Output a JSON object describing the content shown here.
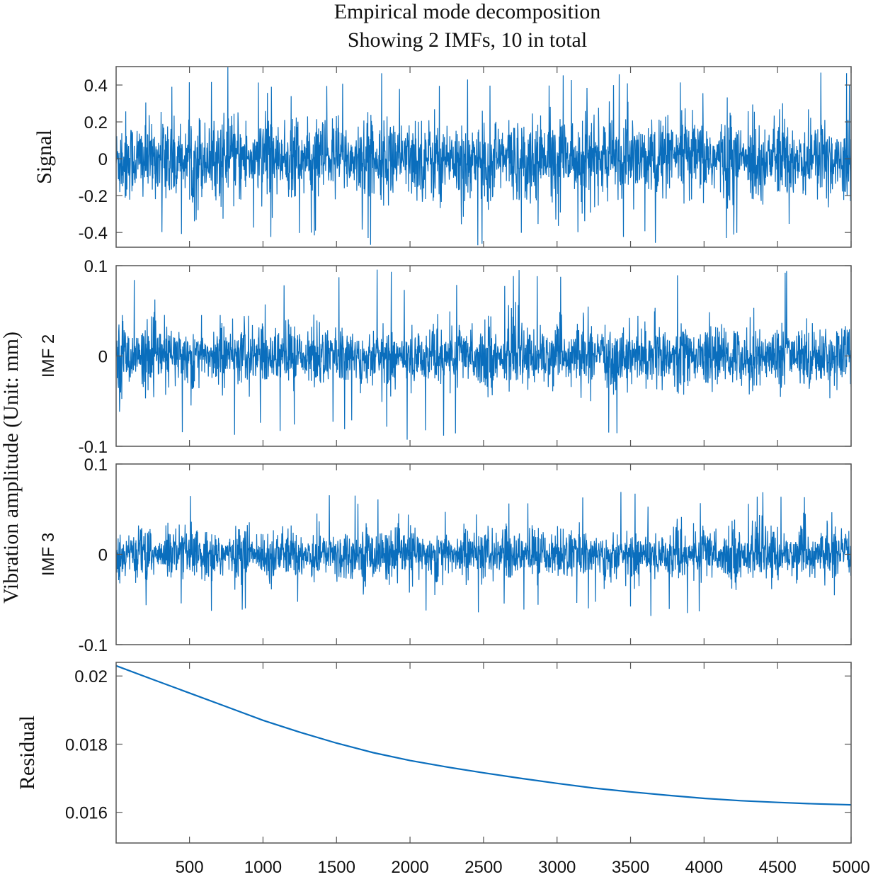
{
  "title": {
    "line1": "Empirical mode decomposition",
    "line2": "Showing 2 IMFs,  10 in total"
  },
  "ylabel": "Vibration amplitude (Unit: mm)",
  "colors": {
    "line": "#0a6ebd",
    "axes": "#555555",
    "text": "#111111"
  },
  "chart_data": [
    {
      "type": "line",
      "name": "Signal",
      "ylabel": "Signal",
      "ylim": [
        -0.48,
        0.5
      ],
      "yticks": [
        -0.4,
        -0.2,
        0,
        0.2,
        0.4
      ],
      "ytick_labels": [
        "-0.4",
        "-0.2",
        "0",
        "0.2",
        "0.4"
      ],
      "xlim": [
        1,
        5000
      ],
      "envelope": {
        "typical_amplitude": 0.2,
        "peak_max": 0.5,
        "peak_min": -0.47
      }
    },
    {
      "type": "line",
      "name": "IMF 2",
      "ylabel": "IMF 2",
      "ylim": [
        -0.1,
        0.1
      ],
      "yticks": [
        -0.1,
        0,
        0.1
      ],
      "ytick_labels": [
        "-0.1",
        "0",
        "0.1"
      ],
      "xlim": [
        1,
        5000
      ],
      "envelope": {
        "typical_amplitude": 0.03,
        "peak_max": 0.097,
        "peak_min": -0.095
      }
    },
    {
      "type": "line",
      "name": "IMF 3",
      "ylabel": "IMF 3",
      "ylim": [
        -0.1,
        0.1
      ],
      "yticks": [
        -0.1,
        0,
        0.1
      ],
      "ytick_labels": [
        "-0.1",
        "0",
        "0.1"
      ],
      "xlim": [
        1,
        5000
      ],
      "envelope": {
        "typical_amplitude": 0.025,
        "peak_max": 0.07,
        "peak_min": -0.07
      }
    },
    {
      "type": "line",
      "name": "Residual",
      "ylabel": "Residual",
      "ylim": [
        0.0151,
        0.0204
      ],
      "yticks": [
        0.016,
        0.018,
        0.02
      ],
      "ytick_labels": [
        "0.016",
        "0.018",
        "0.02"
      ],
      "xlim": [
        1,
        5000
      ],
      "xticks": [
        500,
        1000,
        1500,
        2000,
        2500,
        3000,
        3500,
        4000,
        4500,
        5000
      ],
      "xtick_labels": [
        "500",
        "1000",
        "1500",
        "2000",
        "2500",
        "3000",
        "3500",
        "4000",
        "4500",
        "5000"
      ],
      "x": [
        1,
        250,
        500,
        750,
        1000,
        1250,
        1500,
        1750,
        2000,
        2250,
        2500,
        2750,
        3000,
        3250,
        3500,
        3750,
        4000,
        4250,
        4500,
        4750,
        5000
      ],
      "y": [
        0.0203,
        0.0199,
        0.0195,
        0.0191,
        0.0187,
        0.01835,
        0.01803,
        0.01775,
        0.01752,
        0.01733,
        0.01716,
        0.017,
        0.01685,
        0.01671,
        0.0166,
        0.0165,
        0.01641,
        0.01634,
        0.01629,
        0.01625,
        0.01622
      ]
    }
  ]
}
